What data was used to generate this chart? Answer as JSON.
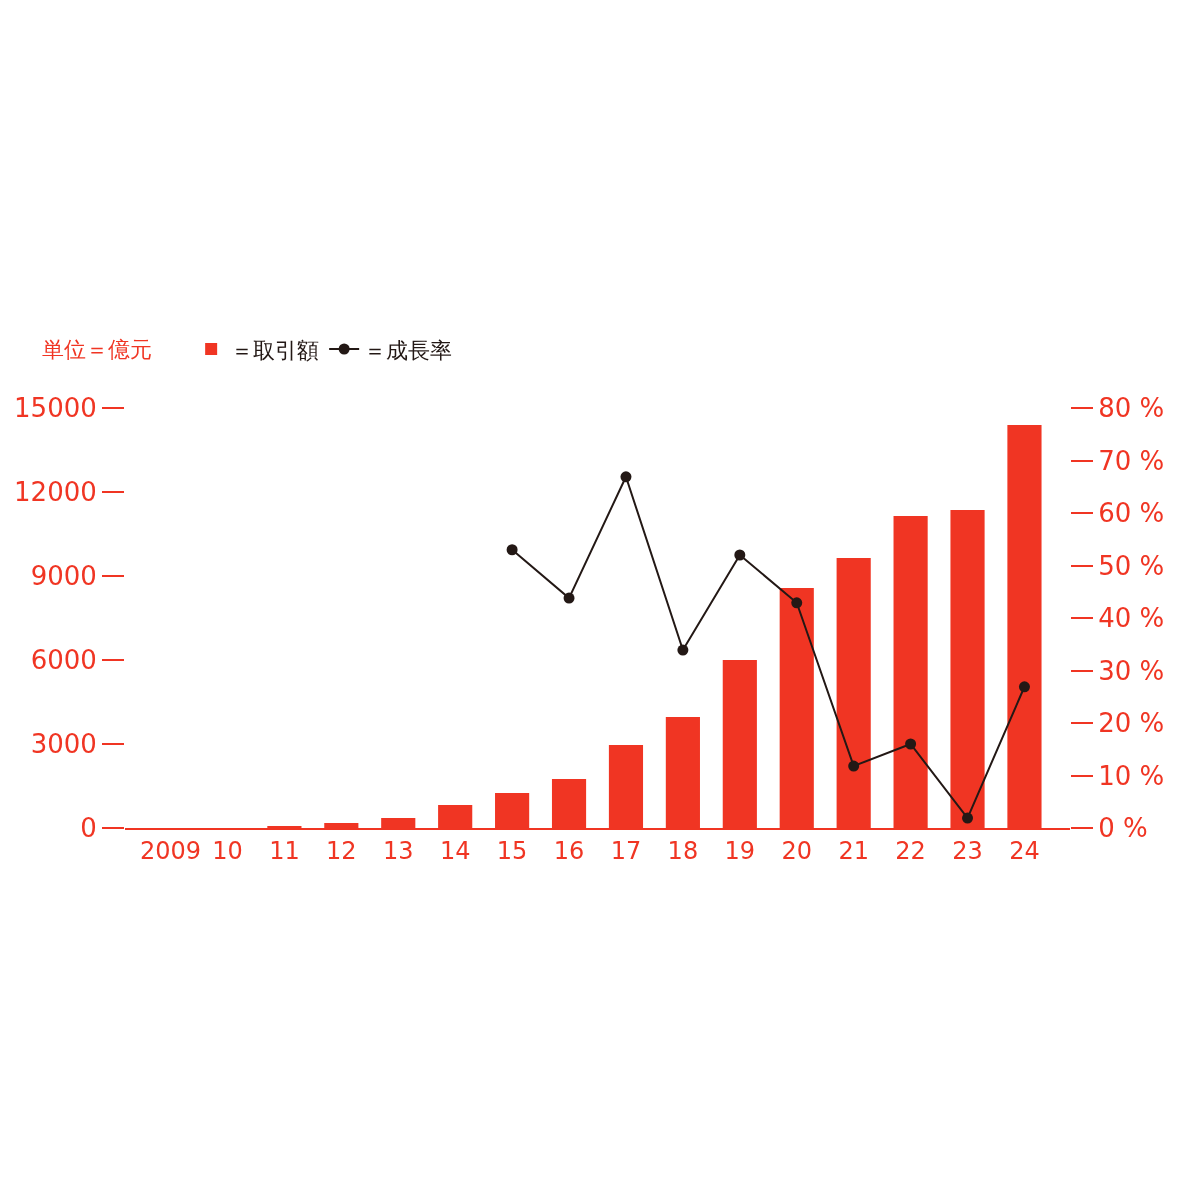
{
  "chart_data": {
    "type": "bar",
    "ylabel": "単位＝億元",
    "categories": [
      "2009",
      "10",
      "11",
      "12",
      "13",
      "14",
      "15",
      "16",
      "17",
      "18",
      "19",
      "20",
      "21",
      "22",
      "23",
      "24"
    ],
    "series": [
      {
        "name": "＝取引額",
        "color": "#f03523",
        "values": [
          0,
          0,
          70,
          180,
          360,
          820,
          1250,
          1750,
          2960,
          3960,
          6000,
          8570,
          9640,
          11140,
          11360,
          14390
        ]
      },
      {
        "name": "＝成長率",
        "type": "line",
        "axis": "y2",
        "color": "#231815",
        "marker": "circle",
        "line_style": "solid",
        "values": [
          null,
          null,
          null,
          null,
          null,
          null,
          53,
          43.8,
          66.9,
          33.9,
          52,
          42.9,
          11.8,
          16,
          1.9,
          26.9
        ]
      }
    ],
    "ylim": [
      0,
      15000
    ],
    "yticks": [
      0,
      3000,
      6000,
      9000,
      12000,
      15000
    ],
    "y2lim": [
      0,
      80
    ],
    "y2ticks": [
      {
        "value": 0,
        "label": "0 %"
      },
      {
        "value": 10,
        "label": "10 %"
      },
      {
        "value": 20,
        "label": "20 %"
      },
      {
        "value": 30,
        "label": "30 %"
      },
      {
        "value": 40,
        "label": "40 %"
      },
      {
        "value": 50,
        "label": "50 %"
      },
      {
        "value": 60,
        "label": "60 %"
      },
      {
        "value": 70,
        "label": "70 %"
      },
      {
        "value": 80,
        "label": "80 %"
      }
    ],
    "legend": "top left"
  }
}
